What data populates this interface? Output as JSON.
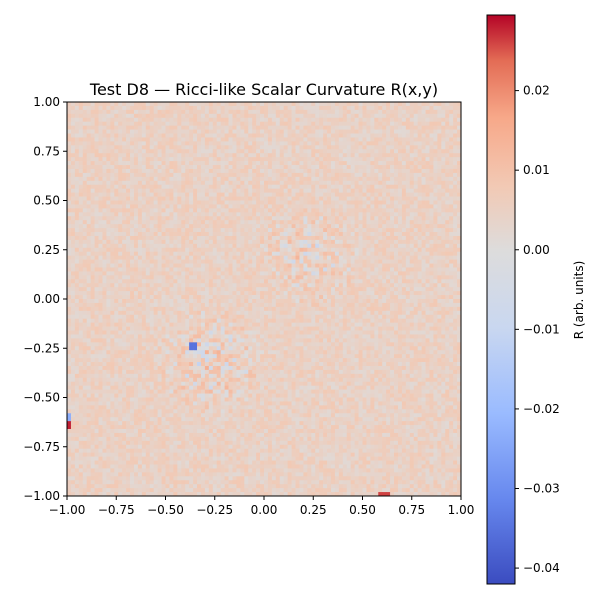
{
  "chart_data": {
    "type": "heatmap",
    "title": "Test D8 — Ricci-like Scalar Curvature R(x,y)",
    "xlabel": "",
    "ylabel": "",
    "xlim": [
      -1.0,
      1.0
    ],
    "ylim": [
      -1.0,
      1.0
    ],
    "x_ticks": [
      "−1.00",
      "−0.75",
      "−0.50",
      "−0.25",
      "0.00",
      "0.25",
      "0.50",
      "0.75",
      "1.00"
    ],
    "y_ticks": [
      "−1.00",
      "−0.75",
      "−0.50",
      "−0.25",
      "0.00",
      "0.25",
      "0.50",
      "0.75",
      "1.00"
    ],
    "grid_resolution": 100,
    "colormap": "coolwarm",
    "color_range": [
      -0.042,
      0.0295
    ],
    "baseline_value": 0.0035,
    "noise_amplitude": 0.0025,
    "features": [
      {
        "region": "upper-center patch",
        "center": [
          0.22,
          0.22
        ],
        "radius": 0.22,
        "amplitude": 0.006
      },
      {
        "region": "lower-left patch",
        "center": [
          -0.27,
          -0.32
        ],
        "radius": 0.22,
        "amplitude": 0.008
      },
      {
        "region": "left edge spike",
        "center": [
          -0.99,
          -0.63
        ],
        "radius": 0.02,
        "value": 0.028
      },
      {
        "region": "left edge dip",
        "center": [
          -0.99,
          -0.6
        ],
        "radius": 0.02,
        "value": -0.02
      },
      {
        "region": "bottom spike",
        "center": [
          0.61,
          -0.99
        ],
        "radius": 0.02,
        "value": 0.026
      },
      {
        "region": "dark point",
        "center": [
          -0.36,
          -0.24
        ],
        "radius": 0.015,
        "value": -0.034
      }
    ],
    "colorbar": {
      "label": "R (arb. units)",
      "ticks": [
        "0.02",
        "0.01",
        "0.00",
        "−0.01",
        "−0.02",
        "−0.03",
        "−0.04"
      ],
      "tick_values": [
        0.02,
        0.01,
        0.0,
        -0.01,
        -0.02,
        -0.03,
        -0.04
      ]
    },
    "grid": false
  }
}
